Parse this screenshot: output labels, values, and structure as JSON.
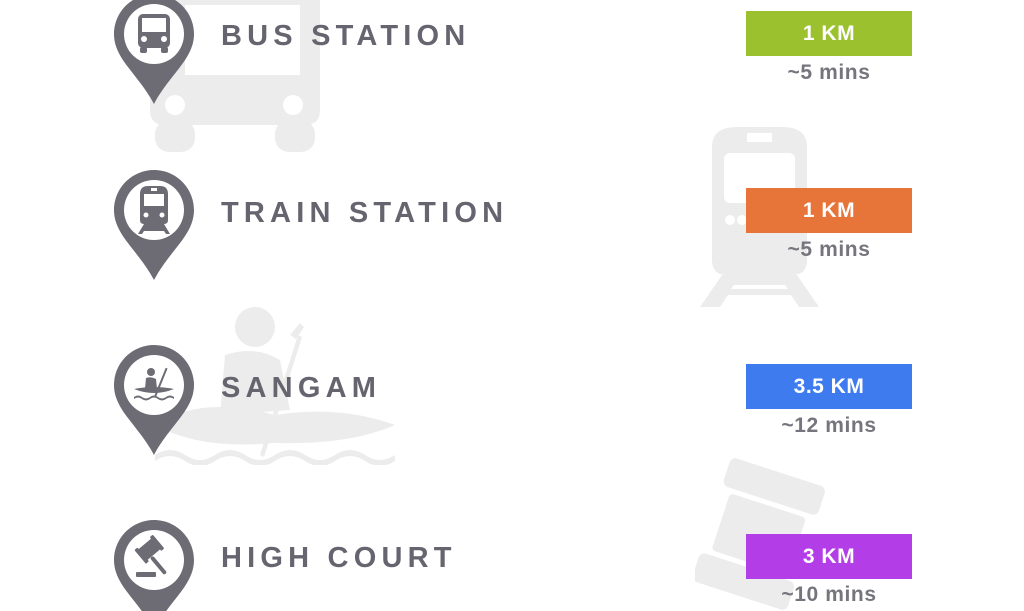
{
  "locations": [
    {
      "name": "BUS STATION",
      "distance": "1 KM",
      "time": "~5 mins",
      "icon": "bus-icon",
      "color": "#9bc12f"
    },
    {
      "name": "TRAIN STATION",
      "distance": "1 KM",
      "time": "~5 mins",
      "icon": "train-icon",
      "color": "#e77438"
    },
    {
      "name": "SANGAM",
      "distance": "3.5 KM",
      "time": "~12 mins",
      "icon": "kayak-icon",
      "color": "#3d7bef"
    },
    {
      "name": "HIGH COURT",
      "distance": "3 KM",
      "time": "~10 mins",
      "icon": "gavel-icon",
      "color": "#b33ee8"
    }
  ],
  "colors": {
    "pin": "#6d6c75",
    "label": "#66656f",
    "time": "#76757d",
    "illustration": "#ececec"
  }
}
